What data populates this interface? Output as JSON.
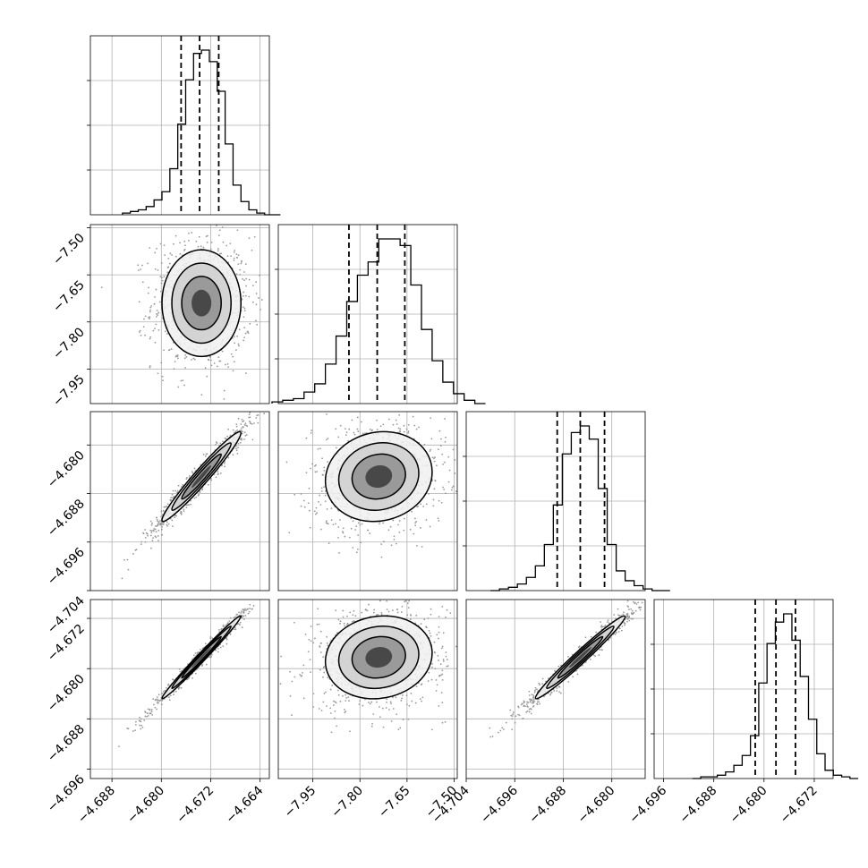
{
  "chart_data": {
    "type": "corner",
    "parameters": [
      {
        "index": 0,
        "center": -4.6735,
        "sigma": 0.0032,
        "lo": -4.6768,
        "med": -4.6738,
        "hi": -4.6707,
        "xlim": [
          -4.6915,
          -4.6625
        ],
        "ticks": [
          -4.688,
          -4.68,
          -4.672,
          -4.664
        ],
        "tick_labels": [
          "−4.688",
          "−4.680",
          "−4.672",
          "−4.664"
        ]
      },
      {
        "index": 1,
        "center": -7.74,
        "sigma": 0.085,
        "lo": -7.835,
        "med": -7.745,
        "hi": -7.657,
        "xlim": [
          -8.06,
          -7.49
        ],
        "ticks": [
          -7.95,
          -7.8,
          -7.65,
          -7.5
        ],
        "tick_labels": [
          "−7.95",
          "−7.80",
          "−7.65",
          "−7.50"
        ]
      },
      {
        "index": 2,
        "center": -4.6852,
        "sigma": 0.0037,
        "lo": -4.689,
        "med": -4.6852,
        "hi": -4.6812,
        "xlim": [
          -4.704,
          -4.6745
        ],
        "ticks": [
          -4.704,
          -4.696,
          -4.688,
          -4.68
        ],
        "tick_labels": [
          "−4.704",
          "−4.696",
          "−4.688",
          "−4.680"
        ]
      },
      {
        "index": 3,
        "center": -4.6782,
        "sigma": 0.0033,
        "lo": -4.6814,
        "med": -4.6781,
        "hi": -4.675,
        "xlim": [
          -4.6975,
          -4.669
        ],
        "ticks": [
          -4.696,
          -4.688,
          -4.68,
          -4.672
        ],
        "tick_labels": [
          "−4.696",
          "−4.688",
          "−4.680",
          "−4.672"
        ]
      }
    ],
    "histograms": [
      {
        "param": 0,
        "bins": 20,
        "counts": [
          1,
          2,
          3,
          5,
          9,
          14,
          28,
          55,
          82,
          98,
          100,
          93,
          75,
          43,
          18,
          8,
          3,
          1,
          0,
          0
        ]
      },
      {
        "param": 1,
        "bins": 20,
        "counts": [
          1,
          2,
          3,
          7,
          12,
          24,
          41,
          62,
          78,
          86,
          100,
          100,
          96,
          72,
          45,
          26,
          13,
          6,
          2,
          0
        ]
      },
      {
        "param": 2,
        "bins": 20,
        "counts": [
          0,
          1,
          2,
          4,
          8,
          15,
          28,
          52,
          83,
          96,
          100,
          92,
          62,
          28,
          12,
          6,
          3,
          1,
          0,
          0
        ]
      },
      {
        "param": 3,
        "bins": 20,
        "counts": [
          0,
          1,
          1,
          2,
          4,
          8,
          14,
          26,
          58,
          82,
          95,
          100,
          84,
          62,
          36,
          15,
          5,
          2,
          1,
          0
        ]
      }
    ],
    "correlations": {
      "1-0": 0.0,
      "2-0": 0.97,
      "2-1": 0.1,
      "3-0": 0.99,
      "3-1": 0.1,
      "3-2": 0.98
    },
    "quantiles_lines": "dashed",
    "contour_levels": 4,
    "grid": true
  }
}
